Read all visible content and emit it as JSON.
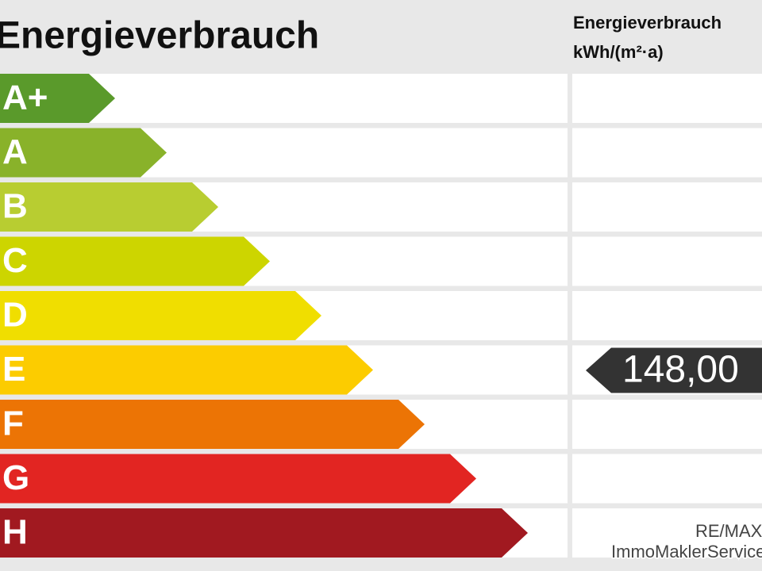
{
  "header": {
    "title": "Energieverbrauch",
    "column_title": "Energieverbrauch",
    "column_unit": "kWh/(m²·a)"
  },
  "classes": [
    {
      "label": "A+",
      "color": "#5a9a2b"
    },
    {
      "label": "A",
      "color": "#89b22a"
    },
    {
      "label": "B",
      "color": "#b8cd31"
    },
    {
      "label": "C",
      "color": "#cdd500"
    },
    {
      "label": "D",
      "color": "#f0de00"
    },
    {
      "label": "E",
      "color": "#fccc00"
    },
    {
      "label": "F",
      "color": "#ec7405"
    },
    {
      "label": "G",
      "color": "#e22522"
    },
    {
      "label": "H",
      "color": "#a11920"
    }
  ],
  "marker": {
    "class_index": 5,
    "value": "148,00"
  },
  "footer": {
    "line1": "RE/MAX",
    "line2": "ImmoMaklerService"
  }
}
